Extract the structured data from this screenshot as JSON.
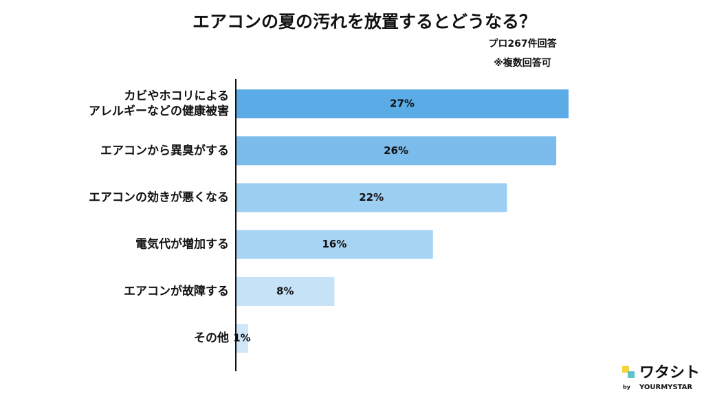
{
  "chart_data": {
    "type": "hbar",
    "title": "エアコンの夏の汚れを放置するとどうなる？",
    "subtitle": [
      "プロ267件回答",
      "※複数回答可"
    ],
    "categories": [
      "カビやホコリによる\nアレルギーなどの健康被害",
      "エアコンから異臭がする",
      "エアコンの効きが悪くなる",
      "電気代が増加する",
      "エアコンが故障する",
      "その他"
    ],
    "values": [
      27,
      26,
      22,
      16,
      8,
      1
    ],
    "value_labels": [
      "27%",
      "26%",
      "22%",
      "16%",
      "8%",
      "1%"
    ],
    "colors": [
      "#5aabe6",
      "#7bbcec",
      "#9dcff3",
      "#a8d4f3",
      "#c5e2f7",
      "#cfe6f8"
    ]
  },
  "logo": {
    "name": "ワタシト",
    "by": "by",
    "brand": "YOURMYSTAR"
  }
}
